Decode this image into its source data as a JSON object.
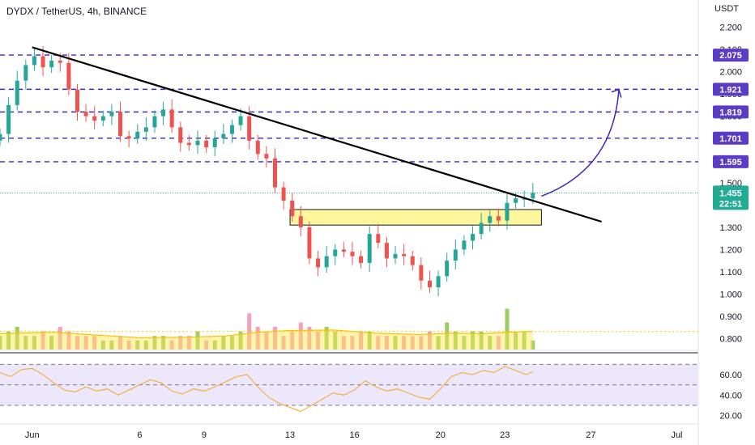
{
  "header": {
    "symbol_title": "DYDX / TetherUS, 4h, BINANCE"
  },
  "colors": {
    "up": "#26a69a",
    "down": "#ef5350",
    "level_line": "#3a2bb5",
    "level_badge": "#5b3cc4",
    "current_badge": "#22ab94",
    "trendline": "#000000",
    "projection": "#3a2bb5",
    "zone_fill": "#fff59d",
    "zone_border": "#131722",
    "volume_up": "#8bc34a",
    "volume_down": "#f48fb1",
    "volume_ma": "#ffe74c",
    "rsi_line": "#f7a520",
    "rsi_band": "#ece7fb"
  },
  "chart_data": {
    "type": "candlestick",
    "title": "DYDX / TetherUS, 4h, BINANCE",
    "price_axis": {
      "unit_label": "USDT",
      "ticks": [
        "2.200",
        "2.100",
        "2.000",
        "1.900",
        "1.800",
        "1.700",
        "1.600",
        "1.500",
        "1.400",
        "1.300",
        "1.200",
        "1.100",
        "1.000",
        "0.900",
        "0.800"
      ],
      "range": [
        0.75,
        2.25
      ]
    },
    "rsi_axis": {
      "ticks": [
        "60.00",
        "40.00",
        "20.00"
      ],
      "band": [
        30,
        70
      ]
    },
    "x_axis": {
      "ticks": [
        "Jun",
        "6",
        "9",
        "13",
        "16",
        "20",
        "23",
        "27",
        "Jul"
      ],
      "tick_days": [
        0,
        5,
        8,
        12,
        15,
        19,
        22,
        26,
        30
      ],
      "range_days": [
        -1.5,
        31
      ]
    },
    "levels": [
      "2.075",
      "1.921",
      "1.819",
      "1.701",
      "1.595"
    ],
    "current_price": {
      "value": "1.455",
      "countdown": "22:51"
    },
    "trendline": {
      "points": [
        [
          0,
          2.11
        ],
        [
          23.3,
          1.42
        ]
      ]
    },
    "support_zone": {
      "x": [
        12,
        23.7
      ],
      "y": [
        1.31,
        1.38
      ]
    },
    "projection": {
      "points": [
        [
          23.7,
          1.44
        ],
        [
          26.3,
          1.6
        ],
        [
          27.3,
          1.92
        ]
      ]
    },
    "price_series": [
      [
        -1.5,
        1.72
      ],
      [
        -1.1,
        1.85
      ],
      [
        -0.7,
        1.96
      ],
      [
        -0.3,
        2.03
      ],
      [
        0.1,
        2.07
      ],
      [
        0.5,
        2.02
      ],
      [
        0.9,
        2.05
      ],
      [
        1.3,
        2.04
      ],
      [
        1.7,
        1.92
      ],
      [
        2.1,
        1.82
      ],
      [
        2.5,
        1.8
      ],
      [
        2.9,
        1.78
      ],
      [
        3.3,
        1.8
      ],
      [
        3.7,
        1.82
      ],
      [
        4.1,
        1.71
      ],
      [
        4.5,
        1.7
      ],
      [
        4.9,
        1.73
      ],
      [
        5.3,
        1.75
      ],
      [
        5.7,
        1.8
      ],
      [
        6.1,
        1.83
      ],
      [
        6.5,
        1.75
      ],
      [
        6.9,
        1.68
      ],
      [
        7.3,
        1.67
      ],
      [
        7.7,
        1.69
      ],
      [
        8.1,
        1.66
      ],
      [
        8.5,
        1.7
      ],
      [
        8.9,
        1.72
      ],
      [
        9.3,
        1.76
      ],
      [
        9.7,
        1.8
      ],
      [
        10.1,
        1.69
      ],
      [
        10.5,
        1.63
      ],
      [
        10.9,
        1.61
      ],
      [
        11.3,
        1.48
      ],
      [
        11.7,
        1.42
      ],
      [
        12.1,
        1.35
      ],
      [
        12.5,
        1.3
      ],
      [
        12.9,
        1.16
      ],
      [
        13.3,
        1.12
      ],
      [
        13.7,
        1.17
      ],
      [
        14.1,
        1.2
      ],
      [
        14.5,
        1.19
      ],
      [
        14.9,
        1.17
      ],
      [
        15.3,
        1.14
      ],
      [
        15.7,
        1.27
      ],
      [
        16.1,
        1.23
      ],
      [
        16.5,
        1.16
      ],
      [
        16.9,
        1.18
      ],
      [
        17.3,
        1.17
      ],
      [
        17.7,
        1.13
      ],
      [
        18.1,
        1.06
      ],
      [
        18.5,
        1.03
      ],
      [
        18.9,
        1.08
      ],
      [
        19.3,
        1.15
      ],
      [
        19.7,
        1.2
      ],
      [
        20.1,
        1.24
      ],
      [
        20.5,
        1.27
      ],
      [
        20.9,
        1.32
      ],
      [
        21.3,
        1.35
      ],
      [
        21.7,
        1.33
      ],
      [
        22.1,
        1.41
      ],
      [
        22.5,
        1.43
      ],
      [
        22.9,
        1.43
      ],
      [
        23.3,
        1.455
      ]
    ],
    "volume_scale": [
      0,
      10
    ],
    "volume": [
      [
        -1.5,
        3
      ],
      [
        -1.1,
        4
      ],
      [
        -0.7,
        5
      ],
      [
        -0.3,
        3
      ],
      [
        0.1,
        3
      ],
      [
        0.5,
        4
      ],
      [
        0.9,
        3
      ],
      [
        1.3,
        5
      ],
      [
        1.7,
        4
      ],
      [
        2.1,
        3
      ],
      [
        2.5,
        3
      ],
      [
        2.9,
        3
      ],
      [
        3.3,
        2
      ],
      [
        3.7,
        2
      ],
      [
        4.1,
        3
      ],
      [
        4.5,
        2
      ],
      [
        4.9,
        2
      ],
      [
        5.3,
        2
      ],
      [
        5.7,
        3
      ],
      [
        6.1,
        3
      ],
      [
        6.5,
        2
      ],
      [
        6.9,
        3
      ],
      [
        7.3,
        3
      ],
      [
        7.7,
        4
      ],
      [
        8.1,
        2
      ],
      [
        8.5,
        2
      ],
      [
        8.9,
        3
      ],
      [
        9.3,
        3
      ],
      [
        9.7,
        4
      ],
      [
        10.1,
        8
      ],
      [
        10.5,
        5
      ],
      [
        10.9,
        4
      ],
      [
        11.3,
        5
      ],
      [
        11.7,
        3
      ],
      [
        12.1,
        4
      ],
      [
        12.5,
        6
      ],
      [
        12.9,
        5
      ],
      [
        13.3,
        4
      ],
      [
        13.7,
        5
      ],
      [
        14.1,
        4
      ],
      [
        14.5,
        3
      ],
      [
        14.9,
        3
      ],
      [
        15.3,
        4
      ],
      [
        15.7,
        4
      ],
      [
        16.1,
        3
      ],
      [
        16.5,
        3
      ],
      [
        16.9,
        3
      ],
      [
        17.3,
        3
      ],
      [
        17.7,
        3
      ],
      [
        18.1,
        3
      ],
      [
        18.5,
        4
      ],
      [
        18.9,
        3
      ],
      [
        19.3,
        6
      ],
      [
        19.7,
        4
      ],
      [
        20.1,
        3
      ],
      [
        20.5,
        4
      ],
      [
        20.9,
        4
      ],
      [
        21.3,
        3
      ],
      [
        21.7,
        3
      ],
      [
        22.1,
        9
      ],
      [
        22.5,
        4
      ],
      [
        22.9,
        4
      ],
      [
        23.3,
        2
      ]
    ],
    "volume_ma": [
      [
        -1.5,
        3.5
      ],
      [
        1.0,
        3.8
      ],
      [
        3.0,
        3.2
      ],
      [
        5.0,
        2.6
      ],
      [
        7.0,
        2.7
      ],
      [
        9.0,
        3.0
      ],
      [
        10.5,
        3.8
      ],
      [
        12.0,
        4.2
      ],
      [
        14.0,
        4.3
      ],
      [
        16.0,
        3.6
      ],
      [
        18.0,
        3.3
      ],
      [
        19.5,
        3.6
      ],
      [
        21.0,
        3.5
      ],
      [
        22.5,
        3.9
      ],
      [
        23.3,
        4.0
      ]
    ],
    "volume_ma_level": 4.0,
    "rsi": [
      [
        -1.5,
        62
      ],
      [
        -1.0,
        58
      ],
      [
        -0.5,
        65
      ],
      [
        0.0,
        66
      ],
      [
        0.5,
        60
      ],
      [
        1.0,
        52
      ],
      [
        1.5,
        45
      ],
      [
        2.0,
        43
      ],
      [
        2.5,
        48
      ],
      [
        3.0,
        44
      ],
      [
        3.5,
        46
      ],
      [
        4.0,
        40
      ],
      [
        4.5,
        45
      ],
      [
        5.0,
        50
      ],
      [
        5.5,
        55
      ],
      [
        6.0,
        52
      ],
      [
        6.5,
        44
      ],
      [
        7.0,
        41
      ],
      [
        7.5,
        46
      ],
      [
        8.0,
        44
      ],
      [
        8.5,
        48
      ],
      [
        9.0,
        53
      ],
      [
        9.5,
        58
      ],
      [
        10.0,
        60
      ],
      [
        10.5,
        48
      ],
      [
        11.0,
        38
      ],
      [
        11.5,
        32
      ],
      [
        12.0,
        28
      ],
      [
        12.5,
        24
      ],
      [
        13.0,
        30
      ],
      [
        13.5,
        36
      ],
      [
        14.0,
        42
      ],
      [
        14.5,
        40
      ],
      [
        15.0,
        45
      ],
      [
        15.5,
        54
      ],
      [
        16.0,
        48
      ],
      [
        16.5,
        44
      ],
      [
        17.0,
        46
      ],
      [
        17.5,
        42
      ],
      [
        18.0,
        38
      ],
      [
        18.5,
        36
      ],
      [
        19.0,
        46
      ],
      [
        19.5,
        58
      ],
      [
        20.0,
        62
      ],
      [
        20.5,
        60
      ],
      [
        21.0,
        64
      ],
      [
        21.5,
        62
      ],
      [
        22.0,
        68
      ],
      [
        22.5,
        64
      ],
      [
        23.0,
        60
      ],
      [
        23.3,
        63
      ]
    ]
  }
}
